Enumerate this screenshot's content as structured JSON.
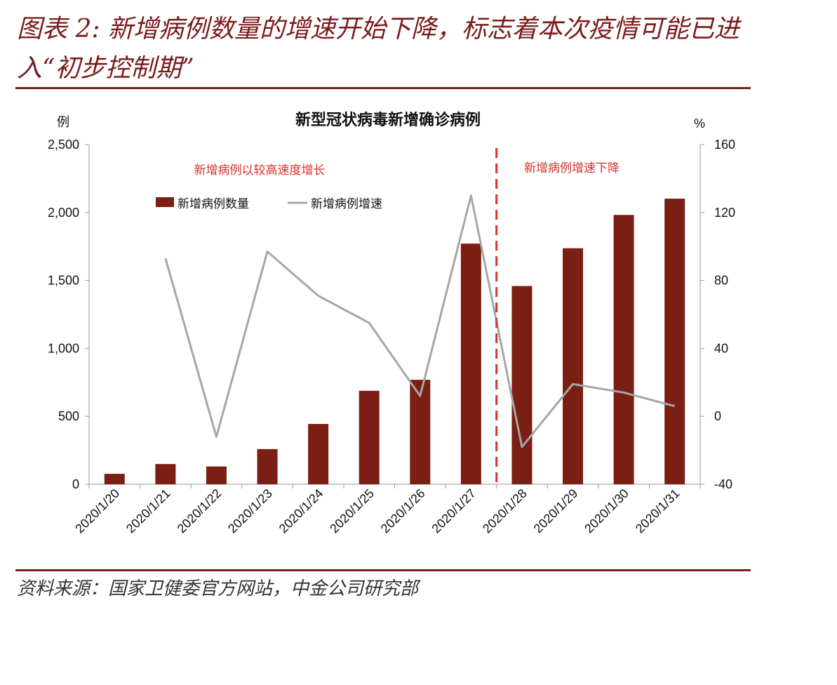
{
  "figure": {
    "title": "图表 2: 新增病例数量的增速开始下降，标志着本次疫情可能已进入“初步控制期”",
    "source": "资料来源：国家卫健委官方网站，中金公司研究部"
  },
  "colors": {
    "bar": "#7b1e14",
    "line": "#a6a6a6",
    "annotation": "#d9322e",
    "brand": "#7a1c1c"
  },
  "chart_data": {
    "type": "bar",
    "title": "新型冠状病毒新增确诊病例",
    "ylabel_left": "例",
    "ylabel_right": "%",
    "categories": [
      "2020/1/20",
      "2020/1/21",
      "2020/1/22",
      "2020/1/23",
      "2020/1/24",
      "2020/1/25",
      "2020/1/26",
      "2020/1/27",
      "2020/1/28",
      "2020/1/29",
      "2020/1/30",
      "2020/1/31"
    ],
    "ylim_left": [
      0,
      2500
    ],
    "yticks_left": [
      0,
      500,
      1000,
      1500,
      2000,
      2500
    ],
    "ytick_labels_left": [
      "0",
      "500",
      "1,000",
      "1,500",
      "2,000",
      "2,500"
    ],
    "ylim_right": [
      -40,
      160
    ],
    "yticks_right": [
      -40,
      0,
      40,
      80,
      120,
      160
    ],
    "ytick_labels_right": [
      "-40",
      "0",
      "40",
      "80",
      "120",
      "160"
    ],
    "series": [
      {
        "name": "新增病例数量",
        "type": "bar",
        "axis": "left",
        "values": [
          77,
          149,
          131,
          259,
          444,
          688,
          769,
          1771,
          1459,
          1737,
          1982,
          2102
        ]
      },
      {
        "name": "新增病例增速",
        "type": "line",
        "axis": "right",
        "values": [
          null,
          93,
          -12,
          97,
          71,
          55,
          12,
          130,
          -18,
          19,
          14,
          6
        ]
      }
    ],
    "divider_after_index": 7,
    "annotations": [
      "新增病例以较高速度增长",
      "新增病例增速下降"
    ],
    "legend": "top-left",
    "grid": false
  }
}
